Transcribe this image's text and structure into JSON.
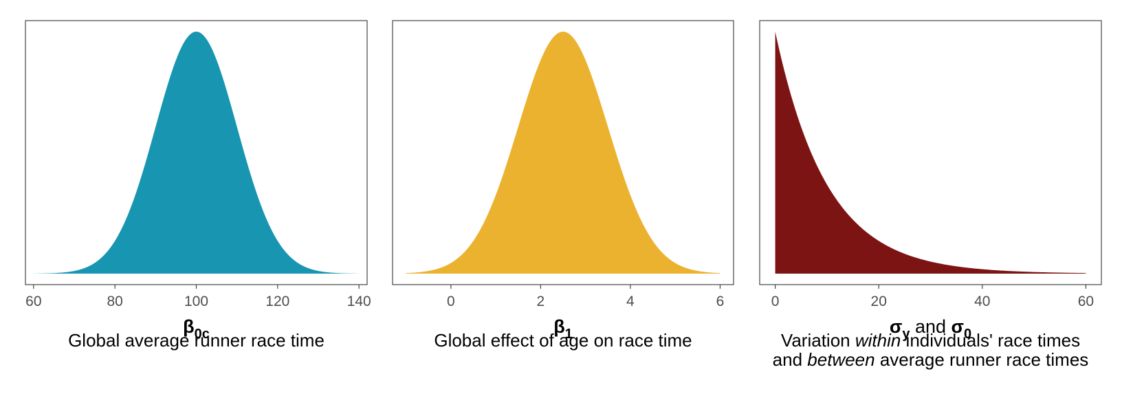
{
  "chart_data": [
    {
      "type": "area",
      "distribution": "normal",
      "mean": 100,
      "sd": 10,
      "x_range": [
        60,
        140
      ],
      "xlim": [
        58,
        142
      ],
      "xticks": [
        "60",
        "80",
        "100",
        "120",
        "140"
      ],
      "fill_color": "#1795b1",
      "grid": false,
      "symbol": {
        "base": "β",
        "sub": "0c",
        "rest": ""
      },
      "caption_lines": [
        [
          "Global average runner race time"
        ]
      ]
    },
    {
      "type": "area",
      "distribution": "normal",
      "mean": 2.5,
      "sd": 1,
      "x_range": [
        -1,
        6
      ],
      "xlim": [
        -1.3,
        6.3
      ],
      "xticks": [
        "0",
        "2",
        "4",
        "6"
      ],
      "fill_color": "#ebb230",
      "grid": false,
      "symbol": {
        "base": "β",
        "sub": "1",
        "rest": ""
      },
      "caption_lines": [
        [
          "Global effect of age on race time"
        ]
      ]
    },
    {
      "type": "area",
      "distribution": "exponential",
      "rate": 0.1,
      "x_range": [
        0,
        60
      ],
      "xlim": [
        -3,
        63
      ],
      "xticks": [
        "0",
        "20",
        "40",
        "60"
      ],
      "fill_color": "#7d1414",
      "grid": false,
      "symbol": {
        "base": "σ",
        "sub": "y",
        "rest": " and ",
        "base2": "σ",
        "sub2": "0"
      },
      "caption_lines": [
        [
          "Variation ",
          "within",
          " individuals' race times"
        ],
        [
          "and ",
          "between",
          " average runner race times"
        ]
      ]
    }
  ]
}
